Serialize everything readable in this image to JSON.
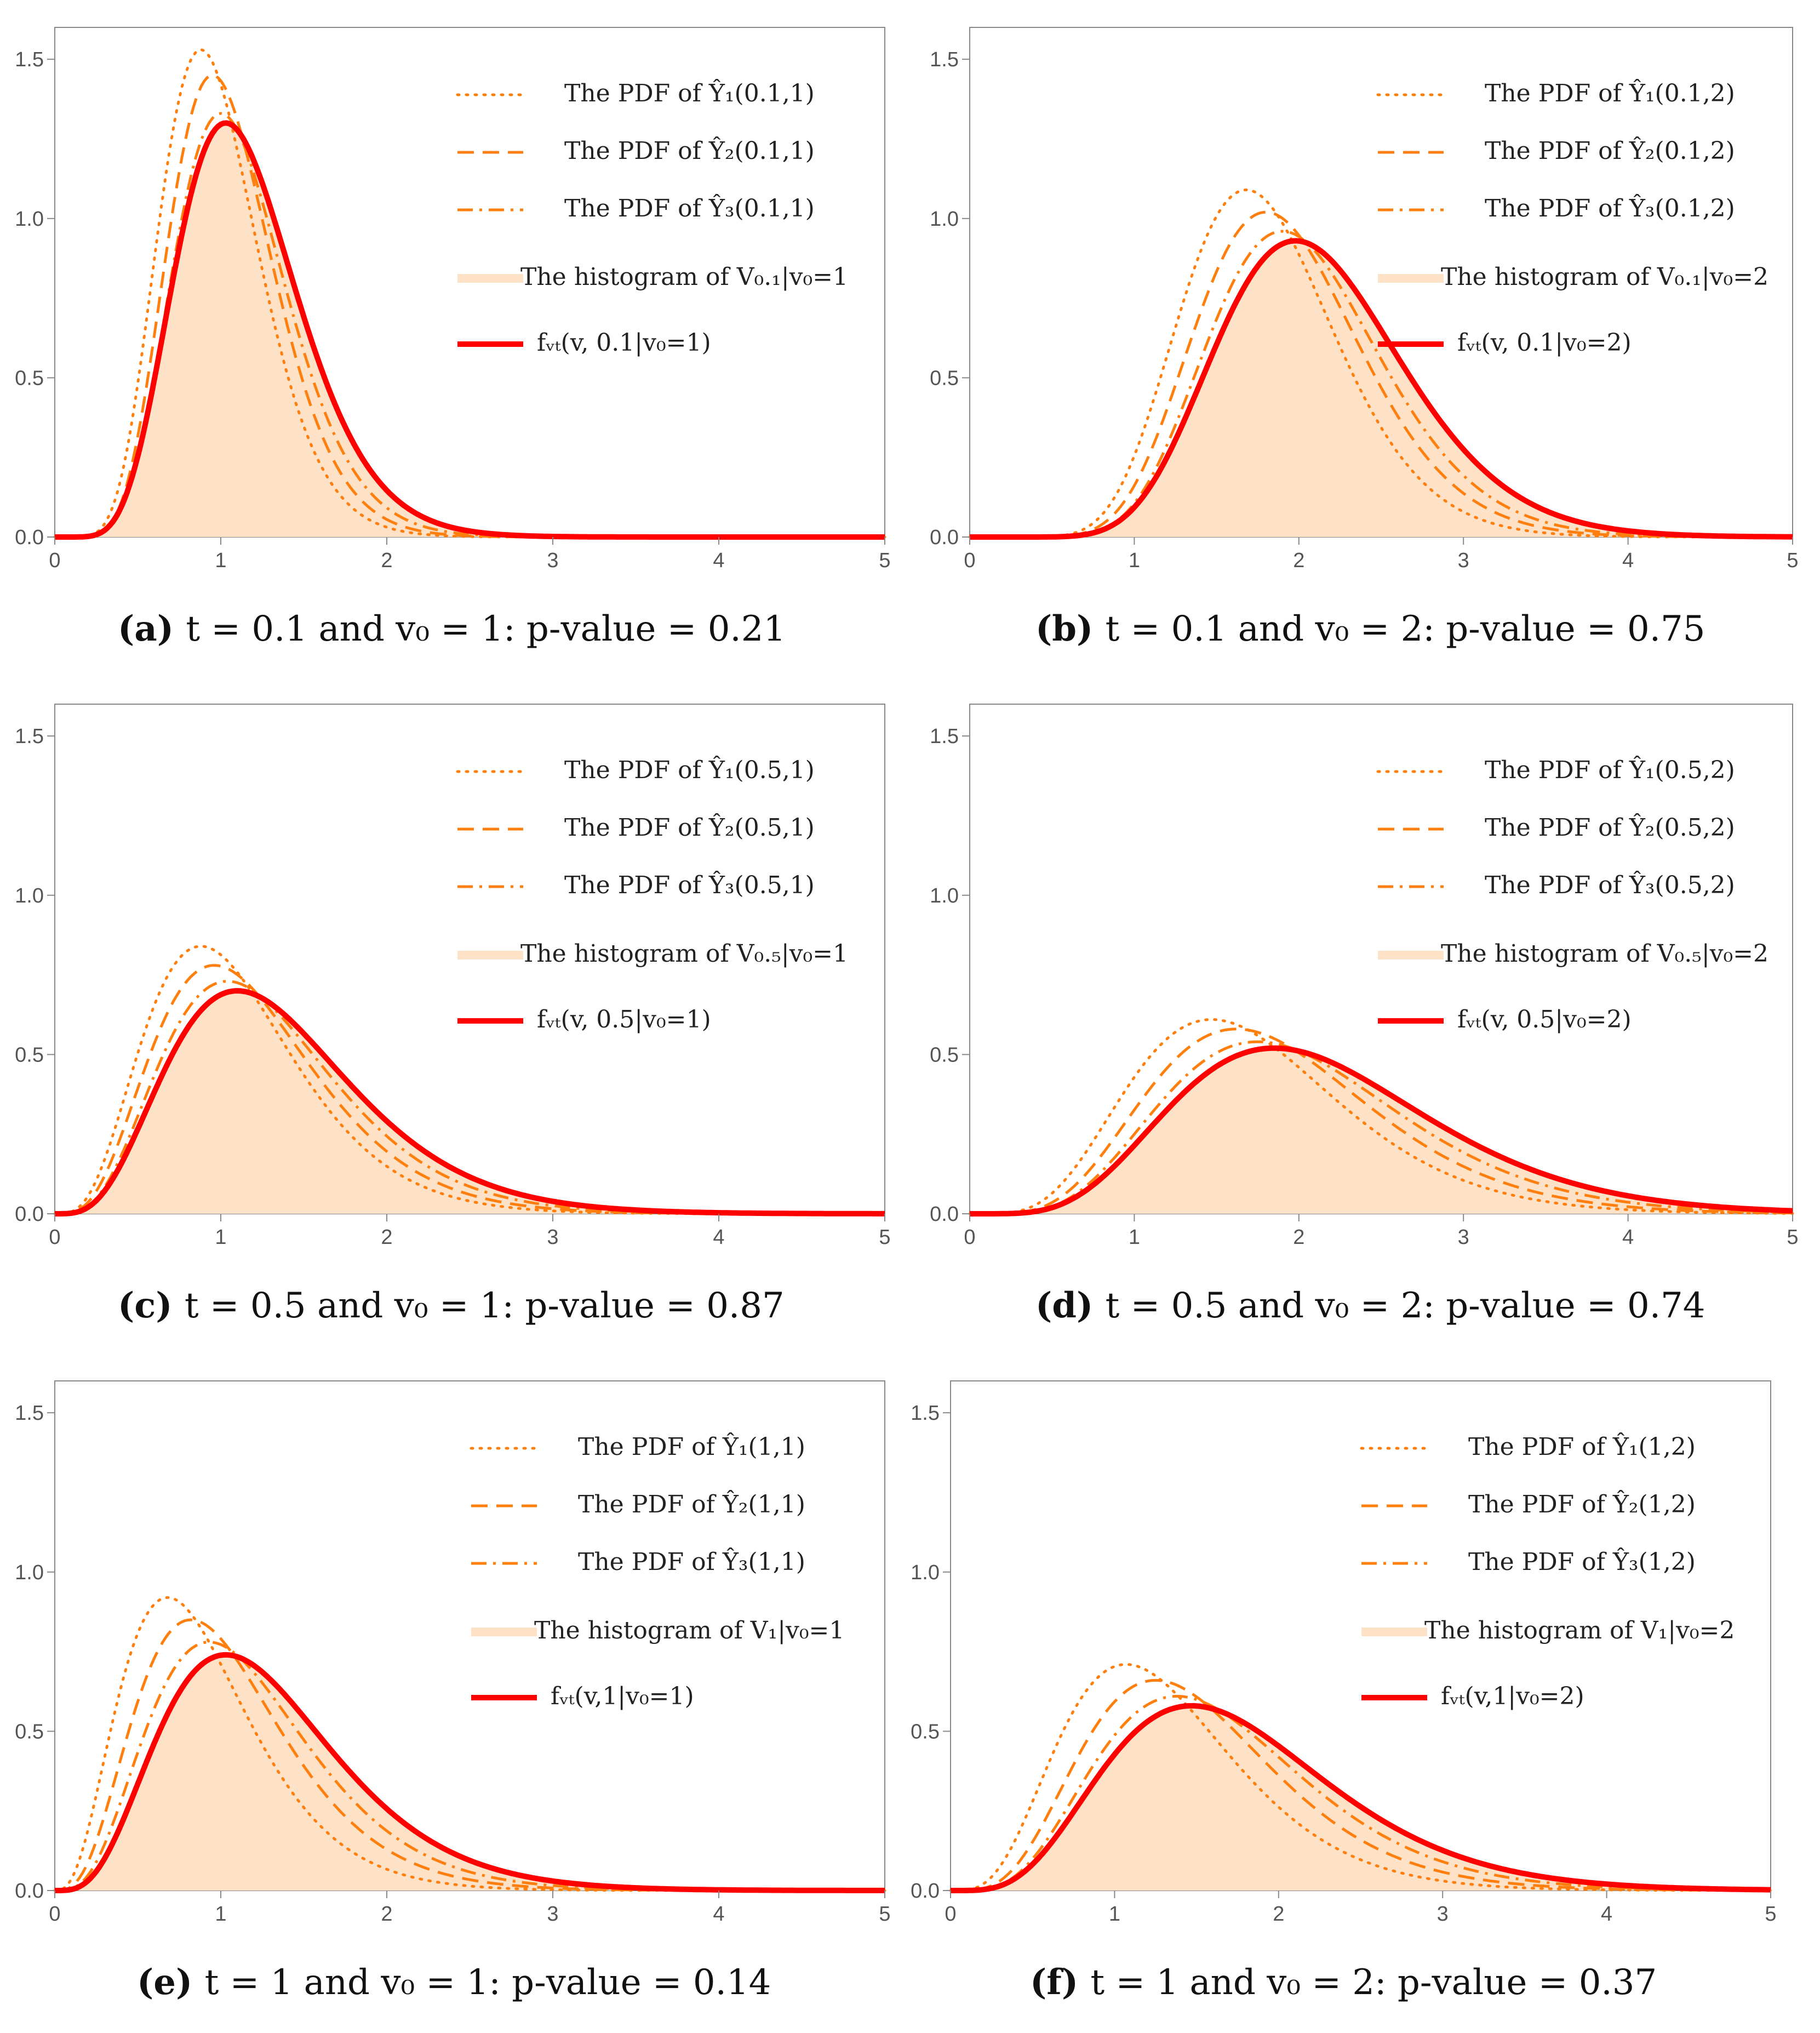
{
  "colors": {
    "pdf_line": "#ff7f0e",
    "fvt_line": "#ff0000",
    "histogram_fill": "#fde2c8",
    "axis": "#888888",
    "tick_text": "#555555"
  },
  "chart_data": [
    {
      "type": "line",
      "id": "a",
      "xlim": [
        0,
        5
      ],
      "ylim": [
        0,
        1.6
      ],
      "xticks": [
        "0",
        "1",
        "2",
        "3",
        "4",
        "5"
      ],
      "yticks": [
        "0.0",
        "0.5",
        "1.0",
        "1.5"
      ],
      "legend": [
        "The PDF of Ŷ₁(0.1,1)",
        "The PDF of Ŷ₂(0.1,1)",
        "The PDF of Ŷ₃(0.1,1)",
        "The histogram of V₀.₁|v₀=1",
        "fᵥₜ(v, 0.1|v₀=1)"
      ],
      "legend_position": "top-right",
      "caption": {
        "label": "(a)",
        "text": "t = 0.1 and v₀ = 1: p-value = 0.21"
      },
      "series": [
        {
          "name": "Ŷ₁",
          "style": "dotted",
          "peak_x": 0.88,
          "peak_y": 1.53,
          "support_end": 1.9
        },
        {
          "name": "Ŷ₂",
          "style": "dashed",
          "peak_x": 0.95,
          "peak_y": 1.45,
          "support_end": 2.0
        },
        {
          "name": "Ŷ₃",
          "style": "dashdot",
          "peak_x": 1.0,
          "peak_y": 1.33,
          "support_end": 2.15
        },
        {
          "name": "fVt",
          "style": "solid",
          "peak_x": 1.03,
          "peak_y": 1.3,
          "support_end": 2.35
        }
      ]
    },
    {
      "type": "line",
      "id": "b",
      "xlim": [
        0,
        5
      ],
      "ylim": [
        0,
        1.6
      ],
      "xticks": [
        "0",
        "1",
        "2",
        "3",
        "4",
        "5"
      ],
      "yticks": [
        "0.0",
        "0.5",
        "1.0",
        "1.5"
      ],
      "legend": [
        "The PDF of Ŷ₁(0.1,2)",
        "The PDF of Ŷ₂(0.1,2)",
        "The PDF of Ŷ₃(0.1,2)",
        "The histogram of V₀.₁|v₀=2",
        "fᵥₜ(v, 0.1|v₀=2)"
      ],
      "legend_position": "top-right",
      "caption": {
        "label": "(b)",
        "text": "t = 0.1 and v₀ = 2: p-value = 0.75"
      },
      "series": [
        {
          "name": "Ŷ₁",
          "style": "dotted",
          "peak_x": 1.68,
          "peak_y": 1.09,
          "support_end": 3.0
        },
        {
          "name": "Ŷ₂",
          "style": "dashed",
          "peak_x": 1.8,
          "peak_y": 1.02,
          "support_end": 3.2
        },
        {
          "name": "Ŷ₃",
          "style": "dashdot",
          "peak_x": 1.9,
          "peak_y": 0.96,
          "support_end": 3.35
        },
        {
          "name": "fVt",
          "style": "solid",
          "peak_x": 1.98,
          "peak_y": 0.93,
          "support_end": 3.6
        }
      ]
    },
    {
      "type": "line",
      "id": "c",
      "xlim": [
        0,
        5
      ],
      "ylim": [
        0,
        1.6
      ],
      "xticks": [
        "0",
        "1",
        "2",
        "3",
        "4",
        "5"
      ],
      "yticks": [
        "0.0",
        "0.5",
        "1.0",
        "1.5"
      ],
      "legend": [
        "The PDF of Ŷ₁(0.5,1)",
        "The PDF of Ŷ₂(0.5,1)",
        "The PDF of Ŷ₃(0.5,1)",
        "The histogram of V₀.₅|v₀=1",
        "fᵥₜ(v, 0.5|v₀=1)"
      ],
      "legend_position": "top-right",
      "caption": {
        "label": "(c)",
        "text": "t = 0.5 and v₀ = 1: p-value = 0.87"
      },
      "series": [
        {
          "name": "Ŷ₁",
          "style": "dotted",
          "peak_x": 0.88,
          "peak_y": 0.84,
          "support_end": 3.4
        },
        {
          "name": "Ŷ₂",
          "style": "dashed",
          "peak_x": 0.96,
          "peak_y": 0.78,
          "support_end": 3.6
        },
        {
          "name": "Ŷ₃",
          "style": "dashdot",
          "peak_x": 1.04,
          "peak_y": 0.73,
          "support_end": 3.8
        },
        {
          "name": "fVt",
          "style": "solid",
          "peak_x": 1.1,
          "peak_y": 0.7,
          "support_end": 4.1
        }
      ]
    },
    {
      "type": "line",
      "id": "d",
      "xlim": [
        0,
        5
      ],
      "ylim": [
        0,
        1.6
      ],
      "xticks": [
        "0",
        "1",
        "2",
        "3",
        "4",
        "5"
      ],
      "yticks": [
        "0.0",
        "0.5",
        "1.0",
        "1.5"
      ],
      "legend": [
        "The PDF of Ŷ₁(0.5,2)",
        "The PDF of Ŷ₂(0.5,2)",
        "The PDF of Ŷ₃(0.5,2)",
        "The histogram of V₀.₅|v₀=2",
        "fᵥₜ(v, 0.5|v₀=2)"
      ],
      "legend_position": "top-right",
      "caption": {
        "label": "(d)",
        "text": "t = 0.5 and v₀ = 2: p-value = 0.74"
      },
      "series": [
        {
          "name": "Ŷ₁",
          "style": "dotted",
          "peak_x": 1.47,
          "peak_y": 0.61,
          "support_end": 4.3
        },
        {
          "name": "Ŷ₂",
          "style": "dashed",
          "peak_x": 1.62,
          "peak_y": 0.58,
          "support_end": 4.5
        },
        {
          "name": "Ŷ₃",
          "style": "dashdot",
          "peak_x": 1.75,
          "peak_y": 0.54,
          "support_end": 4.8
        },
        {
          "name": "fVt",
          "style": "solid",
          "peak_x": 1.85,
          "peak_y": 0.52,
          "support_end": 5.2
        }
      ]
    },
    {
      "type": "line",
      "id": "e",
      "xlim": [
        0,
        5
      ],
      "ylim": [
        0,
        1.6
      ],
      "xticks": [
        "0",
        "1",
        "2",
        "3",
        "4",
        "5"
      ],
      "yticks": [
        "0.0",
        "0.5",
        "1.0",
        "1.5"
      ],
      "legend": [
        "The PDF of Ŷ₁(1,1)",
        "The PDF of Ŷ₂(1,1)",
        "The PDF of Ŷ₃(1,1)",
        "The histogram of V₁|v₀=1",
        "fᵥₜ(v,1|v₀=1)"
      ],
      "legend_position": "top-right",
      "caption": {
        "label": "(e)",
        "text": "t = 1 and v₀ = 1: p-value = 0.14"
      },
      "series": [
        {
          "name": "Ŷ₁",
          "style": "dotted",
          "peak_x": 0.68,
          "peak_y": 0.92,
          "support_end": 3.3
        },
        {
          "name": "Ŷ₂",
          "style": "dashed",
          "peak_x": 0.82,
          "peak_y": 0.85,
          "support_end": 3.5
        },
        {
          "name": "Ŷ₃",
          "style": "dashdot",
          "peak_x": 0.93,
          "peak_y": 0.78,
          "support_end": 3.7
        },
        {
          "name": "fVt",
          "style": "solid",
          "peak_x": 1.03,
          "peak_y": 0.74,
          "support_end": 4.0
        }
      ]
    },
    {
      "type": "line",
      "id": "f",
      "xlim": [
        0,
        5
      ],
      "ylim": [
        0,
        1.6
      ],
      "xticks": [
        "0",
        "1",
        "2",
        "3",
        "4",
        "5"
      ],
      "yticks": [
        "0.0",
        "0.5",
        "1.0",
        "1.5"
      ],
      "legend": [
        "The PDF of Ŷ₁(1,2)",
        "The PDF of Ŷ₂(1,2)",
        "The PDF of Ŷ₃(1,2)",
        "The histogram of V₁|v₀=2",
        "fᵥₜ(v,1|v₀=2)"
      ],
      "legend_position": "top-right",
      "caption": {
        "label": "(f)",
        "text": "t = 1 and v₀ = 2: p-value = 0.37"
      },
      "series": [
        {
          "name": "Ŷ₁",
          "style": "dotted",
          "peak_x": 1.07,
          "peak_y": 0.71,
          "support_end": 3.9
        },
        {
          "name": "Ŷ₂",
          "style": "dashed",
          "peak_x": 1.25,
          "peak_y": 0.66,
          "support_end": 4.1
        },
        {
          "name": "Ŷ₃",
          "style": "dashdot",
          "peak_x": 1.38,
          "peak_y": 0.61,
          "support_end": 4.4
        },
        {
          "name": "fVt",
          "style": "solid",
          "peak_x": 1.47,
          "peak_y": 0.58,
          "support_end": 4.8
        }
      ]
    }
  ]
}
